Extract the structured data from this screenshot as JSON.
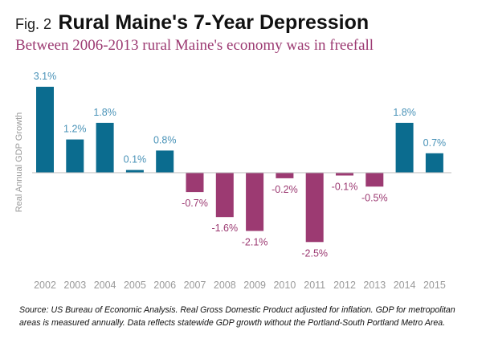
{
  "figure": {
    "fig_label": "Fig. 2",
    "title": "Rural Maine's 7-Year Depression",
    "subtitle": "Between 2006-2013 rural Maine's economy was in freefall"
  },
  "source_note": "Source: US Bureau of Economic Analysis. Real Gross Domestic Product adjusted for inflation. GDP for metropolitan areas is measured annually. Data reflects statewide GDP growth without the Portland-South Portland Metro Area.",
  "colors": {
    "positive": "#0b6c8f",
    "negative": "#9c3a72",
    "positive_label": "#4a93b8",
    "negative_label": "#9c3a72",
    "axis_text": "#9a9a9a",
    "baseline": "#bdbdbd"
  },
  "chart_data": {
    "type": "bar",
    "title": "Rural Maine's 7-Year Depression",
    "subtitle": "Between 2006-2013 rural Maine's economy was in freefall",
    "xlabel": "",
    "ylabel": "Real Annual GDP Growth",
    "categories": [
      "2002",
      "2003",
      "2004",
      "2005",
      "2006",
      "2007",
      "2008",
      "2009",
      "2010",
      "2011",
      "2012",
      "2013",
      "2014",
      "2015"
    ],
    "values": [
      3.1,
      1.2,
      1.8,
      0.1,
      0.8,
      -0.7,
      -1.6,
      -2.1,
      -0.2,
      -2.5,
      -0.1,
      -0.5,
      1.8,
      0.7
    ],
    "data_labels": [
      "3.1%",
      "1.2%",
      "1.8%",
      "0.1%",
      "0.8%",
      "-0.7%",
      "-1.6%",
      "-2.1%",
      "-0.2%",
      "-2.5%",
      "-0.1%",
      "-0.5%",
      "1.8%",
      "0.7%"
    ],
    "ylim": [
      -2.5,
      3.1
    ],
    "grid": false,
    "legend": "none"
  }
}
